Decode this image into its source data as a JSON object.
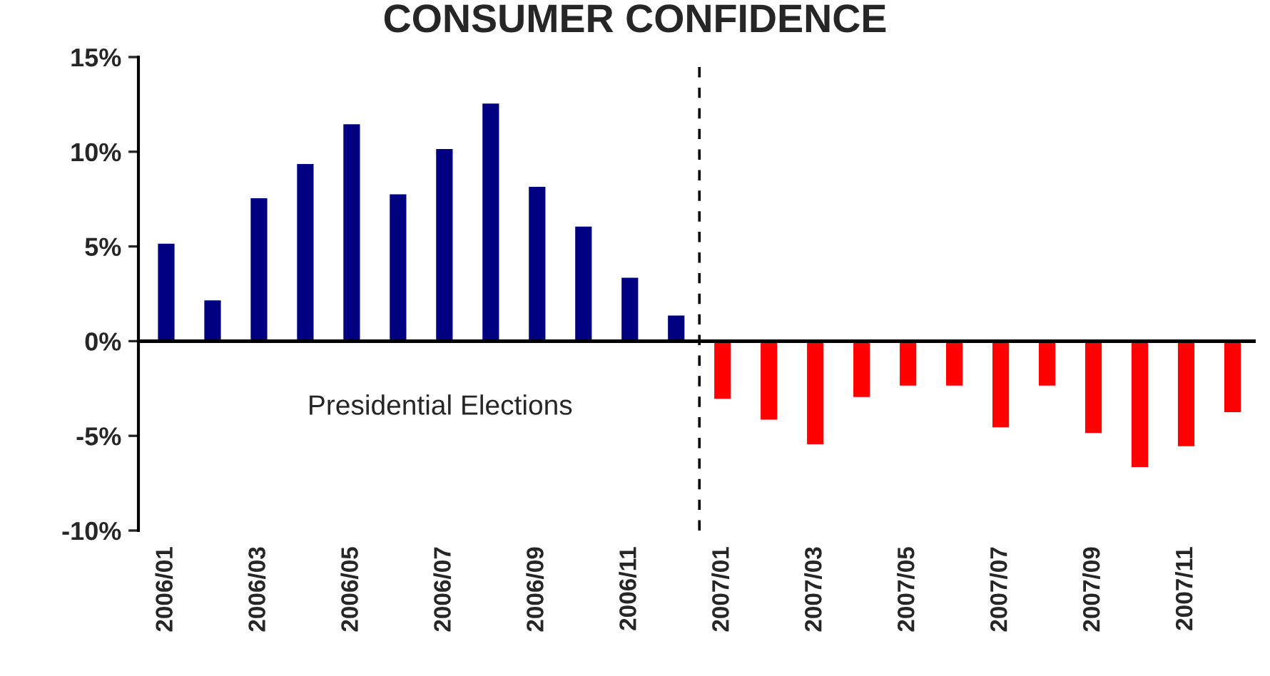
{
  "chart_data": {
    "type": "bar",
    "title": "CONSUMER CONFIDENCE",
    "categories": [
      "2006/01",
      null,
      "2006/03",
      null,
      "2006/05",
      null,
      "2006/07",
      null,
      "2006/09",
      null,
      "2006/11",
      null,
      "2007/01",
      null,
      "2007/03",
      null,
      "2007/05",
      null,
      "2007/07",
      null,
      "2007/09",
      null,
      "2007/11",
      null
    ],
    "values": [
      5.2,
      2.2,
      7.6,
      9.4,
      11.5,
      7.8,
      10.2,
      12.6,
      8.2,
      6.1,
      3.4,
      1.4,
      -3.1,
      -4.2,
      -5.5,
      -3.0,
      -2.4,
      -2.4,
      -4.6,
      -2.4,
      -4.9,
      -6.7,
      -5.6,
      -3.8
    ],
    "colors": [
      "#000080",
      "#000080",
      "#000080",
      "#000080",
      "#000080",
      "#000080",
      "#000080",
      "#000080",
      "#000080",
      "#000080",
      "#000080",
      "#000080",
      "#ff0000",
      "#ff0000",
      "#ff0000",
      "#ff0000",
      "#ff0000",
      "#ff0000",
      "#ff0000",
      "#ff0000",
      "#ff0000",
      "#ff0000",
      "#ff0000",
      "#ff0000"
    ],
    "ylim": [
      -10,
      15
    ],
    "yticks": [
      {
        "value": -10,
        "label": "-10%"
      },
      {
        "value": -5,
        "label": "-5%"
      },
      {
        "value": 0,
        "label": "0%"
      },
      {
        "value": 5,
        "label": "5%"
      },
      {
        "value": 10,
        "label": "10%"
      },
      {
        "value": 15,
        "label": "15%"
      }
    ],
    "annotations": [
      "Presidential Elections"
    ],
    "grid": false,
    "legend": false
  }
}
